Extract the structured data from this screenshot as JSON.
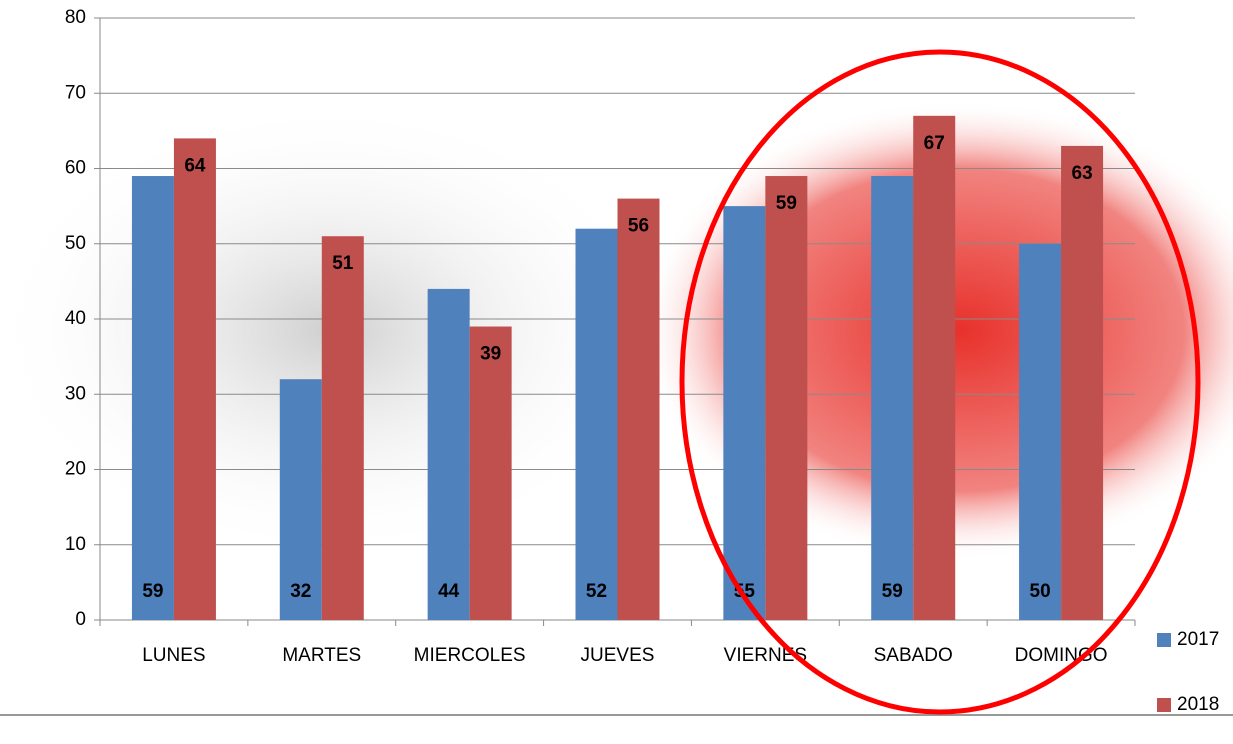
{
  "chart_data": {
    "type": "bar",
    "categories": [
      "LUNES",
      "MARTES",
      "MIERCOLES",
      "JUEVES",
      "VIERNES",
      "SABADO",
      "DOMINGO"
    ],
    "series": [
      {
        "name": "2017",
        "color": "#4f81bd",
        "values": [
          59,
          32,
          44,
          52,
          55,
          59,
          50
        ]
      },
      {
        "name": "2018",
        "color": "#c0504d",
        "values": [
          64,
          51,
          39,
          56,
          59,
          67,
          63
        ]
      }
    ],
    "ylim": [
      0,
      80
    ],
    "yticks": [
      0,
      10,
      20,
      30,
      40,
      50,
      60,
      70,
      80
    ],
    "grid": true,
    "legend": "right"
  }
}
